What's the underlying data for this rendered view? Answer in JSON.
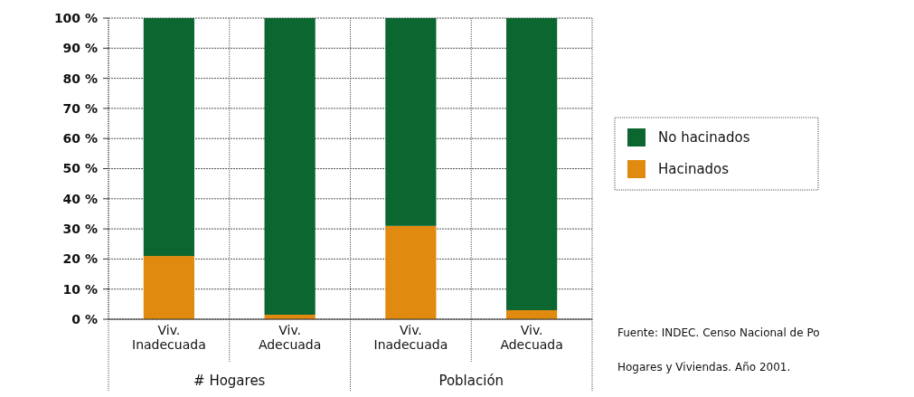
{
  "chart_data": {
    "type": "bar",
    "stacked": true,
    "categories": [
      "Viv.\nInadecuada",
      "Viv.\nAdecuada",
      "Viv.\nInadecuada",
      "Viv.\nAdecuada"
    ],
    "series": [
      {
        "name": "Hacinados",
        "color": "#e08a10",
        "values": [
          21,
          1.5,
          31,
          3
        ]
      },
      {
        "name": "No hacinados",
        "color": "#0b6630",
        "values": [
          79,
          98.5,
          69,
          97
        ]
      }
    ],
    "ylim": [
      0,
      100
    ],
    "yticks": [
      {
        "value": 0,
        "label": "0 %"
      },
      {
        "value": 10,
        "label": "10 %"
      },
      {
        "value": 20,
        "label": "20 %"
      },
      {
        "value": 30,
        "label": "30 %"
      },
      {
        "value": 40,
        "label": "40 %"
      },
      {
        "value": 50,
        "label": "50 %"
      },
      {
        "value": 60,
        "label": "60 %"
      },
      {
        "value": 70,
        "label": "70 %"
      },
      {
        "value": 80,
        "label": "80 %"
      },
      {
        "value": 90,
        "label": "90 %"
      },
      {
        "value": 100,
        "label": "100 %"
      }
    ],
    "grid": true,
    "legend": "right",
    "annotations": [
      "# Hogares",
      "Población",
      "Fuente: INDEC. Censo Nacional de Po",
      "Hogares y Viviendas. Año 2001."
    ]
  }
}
